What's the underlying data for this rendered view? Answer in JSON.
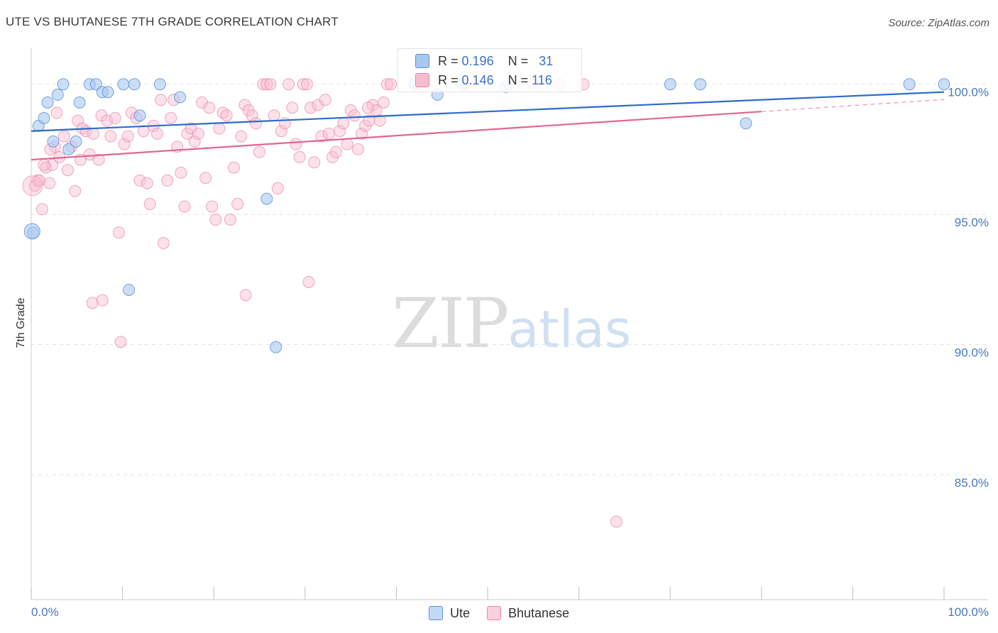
{
  "title": "UTE VS BHUTANESE 7TH GRADE CORRELATION CHART",
  "source": "Source: ZipAtlas.com",
  "watermark": {
    "zip": "ZIP",
    "atlas": "atlas"
  },
  "legend_top": {
    "rows": [
      {
        "r_label": "R =",
        "r_value": "0.196",
        "n_label": "N =",
        "n_value": "31"
      },
      {
        "r_label": "R =",
        "r_value": "0.146",
        "n_label": "N =",
        "n_value": "116"
      }
    ]
  },
  "colors": {
    "ute_fill": "#a9c8f0",
    "ute_stroke": "#5b8ed8",
    "ute_line": "#2c6cc9",
    "bhu_fill": "#f8bcd0",
    "bhu_stroke": "#e885a6",
    "bhu_line": "#e0678f",
    "tick_text": "#4a78c2",
    "grid": "#e4e4e4"
  },
  "chart_data": {
    "type": "scatter",
    "title": "UTE VS BHUTANESE 7TH GRADE CORRELATION CHART",
    "xlabel": "",
    "ylabel": "7th Grade",
    "xlim": [
      0,
      100
    ],
    "ylim": [
      80.2,
      101.6
    ],
    "x_tick_labels": [
      "0.0%",
      "100.0%"
    ],
    "y_ticks": [
      100,
      95,
      90,
      85
    ],
    "y_tick_labels": [
      "100.0%",
      "95.0%",
      "90.0%",
      "85.0%"
    ],
    "grid": true,
    "legend_position": "bottom",
    "series": [
      {
        "name": "Ute",
        "r": 0.196,
        "n": 31,
        "trend": {
          "x": [
            0,
            100
          ],
          "y": [
            98.2,
            99.7
          ]
        },
        "points": [
          {
            "x": 0.8,
            "y": 98.4
          },
          {
            "x": 1.4,
            "y": 98.7
          },
          {
            "x": 1.8,
            "y": 99.3
          },
          {
            "x": 2.4,
            "y": 97.8
          },
          {
            "x": 2.9,
            "y": 99.6
          },
          {
            "x": 3.5,
            "y": 100
          },
          {
            "x": 4.1,
            "y": 97.5
          },
          {
            "x": 4.9,
            "y": 97.8
          },
          {
            "x": 5.3,
            "y": 99.3
          },
          {
            "x": 6.4,
            "y": 100
          },
          {
            "x": 7.1,
            "y": 100
          },
          {
            "x": 7.8,
            "y": 99.7
          },
          {
            "x": 8.4,
            "y": 99.7
          },
          {
            "x": 10.1,
            "y": 100
          },
          {
            "x": 11.3,
            "y": 100
          },
          {
            "x": 11.9,
            "y": 98.8
          },
          {
            "x": 14.1,
            "y": 100
          },
          {
            "x": 16.3,
            "y": 99.5
          },
          {
            "x": 0.2,
            "y": 94.3
          },
          {
            "x": 10.7,
            "y": 92.1
          },
          {
            "x": 25.8,
            "y": 95.6
          },
          {
            "x": 26.8,
            "y": 89.9
          },
          {
            "x": 42.0,
            "y": 100
          },
          {
            "x": 47.2,
            "y": 100
          },
          {
            "x": 52.0,
            "y": 99.9
          },
          {
            "x": 70.0,
            "y": 100
          },
          {
            "x": 73.3,
            "y": 100
          },
          {
            "x": 78.3,
            "y": 98.5
          },
          {
            "x": 96.2,
            "y": 100
          },
          {
            "x": 100.0,
            "y": 100
          },
          {
            "x": 44.5,
            "y": 99.6
          }
        ]
      },
      {
        "name": "Bhutanese",
        "r": 0.146,
        "n": 116,
        "trend": {
          "x": [
            0,
            80
          ],
          "y": [
            97.1,
            98.95
          ]
        },
        "points": [
          {
            "x": 0.4,
            "y": 96.1
          },
          {
            "x": 0.7,
            "y": 96.3
          },
          {
            "x": 1.2,
            "y": 95.2
          },
          {
            "x": 1.6,
            "y": 96.8
          },
          {
            "x": 2.0,
            "y": 96.2
          },
          {
            "x": 2.3,
            "y": 96.9
          },
          {
            "x": 2.6,
            "y": 97.6
          },
          {
            "x": 3.1,
            "y": 97.2
          },
          {
            "x": 3.6,
            "y": 98.0
          },
          {
            "x": 4.0,
            "y": 96.7
          },
          {
            "x": 4.4,
            "y": 97.6
          },
          {
            "x": 4.8,
            "y": 95.9
          },
          {
            "x": 5.1,
            "y": 98.6
          },
          {
            "x": 5.6,
            "y": 98.3
          },
          {
            "x": 6.0,
            "y": 98.2
          },
          {
            "x": 6.4,
            "y": 97.3
          },
          {
            "x": 6.8,
            "y": 98.1
          },
          {
            "x": 7.4,
            "y": 97.1
          },
          {
            "x": 7.7,
            "y": 98.8
          },
          {
            "x": 8.3,
            "y": 98.6
          },
          {
            "x": 8.7,
            "y": 98.0
          },
          {
            "x": 9.2,
            "y": 98.7
          },
          {
            "x": 9.6,
            "y": 94.3
          },
          {
            "x": 10.2,
            "y": 97.7
          },
          {
            "x": 10.6,
            "y": 98.0
          },
          {
            "x": 11.0,
            "y": 98.9
          },
          {
            "x": 11.5,
            "y": 98.7
          },
          {
            "x": 11.9,
            "y": 96.3
          },
          {
            "x": 12.3,
            "y": 98.2
          },
          {
            "x": 12.7,
            "y": 96.2
          },
          {
            "x": 13.0,
            "y": 95.4
          },
          {
            "x": 13.4,
            "y": 98.4
          },
          {
            "x": 13.8,
            "y": 98.1
          },
          {
            "x": 14.2,
            "y": 99.4
          },
          {
            "x": 14.5,
            "y": 93.9
          },
          {
            "x": 14.9,
            "y": 96.3
          },
          {
            "x": 15.3,
            "y": 98.7
          },
          {
            "x": 15.6,
            "y": 99.4
          },
          {
            "x": 16.0,
            "y": 97.6
          },
          {
            "x": 16.4,
            "y": 96.6
          },
          {
            "x": 16.8,
            "y": 95.3
          },
          {
            "x": 17.1,
            "y": 98.1
          },
          {
            "x": 17.5,
            "y": 98.3
          },
          {
            "x": 17.9,
            "y": 97.8
          },
          {
            "x": 18.3,
            "y": 98.1
          },
          {
            "x": 18.7,
            "y": 99.3
          },
          {
            "x": 19.1,
            "y": 96.4
          },
          {
            "x": 19.5,
            "y": 99.1
          },
          {
            "x": 19.8,
            "y": 95.3
          },
          {
            "x": 20.2,
            "y": 94.8
          },
          {
            "x": 20.6,
            "y": 98.3
          },
          {
            "x": 21.0,
            "y": 98.9
          },
          {
            "x": 21.4,
            "y": 98.8
          },
          {
            "x": 21.8,
            "y": 94.8
          },
          {
            "x": 22.2,
            "y": 96.8
          },
          {
            "x": 22.6,
            "y": 95.4
          },
          {
            "x": 23.0,
            "y": 98.0
          },
          {
            "x": 23.4,
            "y": 99.2
          },
          {
            "x": 23.8,
            "y": 99.0
          },
          {
            "x": 24.2,
            "y": 98.8
          },
          {
            "x": 24.6,
            "y": 98.5
          },
          {
            "x": 25.0,
            "y": 97.4
          },
          {
            "x": 25.4,
            "y": 100
          },
          {
            "x": 25.8,
            "y": 100
          },
          {
            "x": 26.2,
            "y": 100
          },
          {
            "x": 26.6,
            "y": 98.8
          },
          {
            "x": 27.0,
            "y": 96.0
          },
          {
            "x": 27.4,
            "y": 98.2
          },
          {
            "x": 27.8,
            "y": 98.5
          },
          {
            "x": 28.2,
            "y": 100
          },
          {
            "x": 28.6,
            "y": 99.1
          },
          {
            "x": 29.0,
            "y": 97.7
          },
          {
            "x": 29.4,
            "y": 97.2
          },
          {
            "x": 29.8,
            "y": 100
          },
          {
            "x": 30.2,
            "y": 100
          },
          {
            "x": 30.6,
            "y": 99.1
          },
          {
            "x": 31.0,
            "y": 97.0
          },
          {
            "x": 31.4,
            "y": 99.2
          },
          {
            "x": 31.8,
            "y": 98.0
          },
          {
            "x": 32.2,
            "y": 99.4
          },
          {
            "x": 32.6,
            "y": 98.1
          },
          {
            "x": 33.0,
            "y": 97.2
          },
          {
            "x": 33.4,
            "y": 97.4
          },
          {
            "x": 33.8,
            "y": 98.2
          },
          {
            "x": 34.2,
            "y": 98.5
          },
          {
            "x": 34.6,
            "y": 97.7
          },
          {
            "x": 35.0,
            "y": 99.0
          },
          {
            "x": 35.4,
            "y": 98.8
          },
          {
            "x": 35.8,
            "y": 97.5
          },
          {
            "x": 36.2,
            "y": 98.1
          },
          {
            "x": 36.6,
            "y": 98.4
          },
          {
            "x": 37.0,
            "y": 98.6
          },
          {
            "x": 37.4,
            "y": 99.2
          },
          {
            "x": 37.8,
            "y": 99.0
          },
          {
            "x": 38.2,
            "y": 98.6
          },
          {
            "x": 38.6,
            "y": 99.3
          },
          {
            "x": 39.0,
            "y": 100
          },
          {
            "x": 39.4,
            "y": 100
          },
          {
            "x": 2.8,
            "y": 98.9
          },
          {
            "x": 6.7,
            "y": 91.6
          },
          {
            "x": 7.8,
            "y": 91.7
          },
          {
            "x": 9.8,
            "y": 90.1
          },
          {
            "x": 23.5,
            "y": 91.9
          },
          {
            "x": 30.4,
            "y": 92.4
          },
          {
            "x": 64.1,
            "y": 83.2
          },
          {
            "x": 42.7,
            "y": 100
          },
          {
            "x": 47.6,
            "y": 100
          },
          {
            "x": 52.4,
            "y": 100
          },
          {
            "x": 55.0,
            "y": 100
          },
          {
            "x": 57.8,
            "y": 100
          },
          {
            "x": 60.5,
            "y": 100
          },
          {
            "x": 36.9,
            "y": 99.1
          },
          {
            "x": 0.9,
            "y": 96.3
          },
          {
            "x": 1.4,
            "y": 96.9
          },
          {
            "x": 2.1,
            "y": 97.5
          },
          {
            "x": 5.4,
            "y": 97.1
          }
        ]
      }
    ]
  },
  "legend_bottom": [
    {
      "label": "Ute"
    },
    {
      "label": "Bhutanese"
    }
  ]
}
